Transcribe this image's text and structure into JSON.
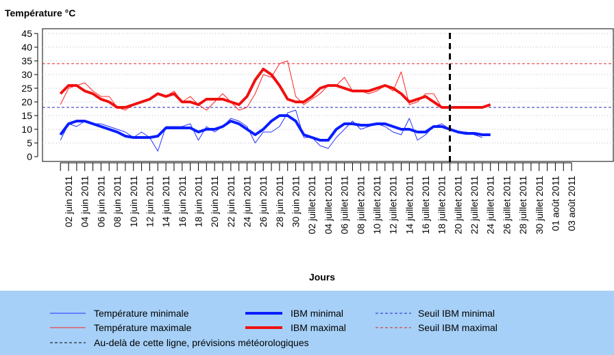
{
  "chart_data": {
    "type": "line",
    "title": "Température °C",
    "x_label": "Jours",
    "categories": [
      null,
      "02 juin 2011",
      null,
      "04 juin 2011",
      null,
      "06 juin 2011",
      null,
      "08 juin 2011",
      null,
      "10 juin 2011",
      null,
      "12 juin 2011",
      null,
      "14 juin 2011",
      null,
      "16 juin 2011",
      null,
      "18 juin 2011",
      null,
      "20 juin 2011",
      null,
      "22 juin 2011",
      null,
      "24 juin 2011",
      null,
      "26 juin 2011",
      null,
      "28 juin 2011",
      null,
      "30 juin 2011",
      null,
      "02 juillet 2011",
      null,
      "04 juillet 2011",
      null,
      "06 juillet 2011",
      null,
      "08 juillet 2011",
      null,
      "10 juillet 2011",
      null,
      "12 juillet 2011",
      null,
      "14 juillet 2011",
      null,
      "16 juillet 2011",
      null,
      "18 juillet 2011",
      null,
      "20 juillet 2011",
      null,
      "22 juillet 2011",
      null,
      "24 juillet 2011",
      null,
      "26 juillet 2011",
      null,
      "28 juillet 2011",
      null,
      "30 juillet 2011",
      null,
      "01 août 2011",
      null,
      "03 août 2011"
    ],
    "series": [
      {
        "name": "Température minimale",
        "color": "#1f2fff",
        "line_width": 1,
        "values": [
          6,
          12,
          11,
          13,
          12,
          12,
          11,
          10,
          9,
          7,
          9,
          7,
          2,
          11,
          11,
          11,
          12,
          6,
          11,
          9,
          11,
          14,
          13,
          11,
          5,
          9,
          9,
          11,
          16,
          17,
          7,
          7,
          4,
          3,
          7,
          10,
          13,
          10,
          11,
          12,
          11,
          9,
          8,
          14,
          6,
          8,
          11,
          12,
          10,
          9,
          9,
          8,
          7,
          null,
          null,
          null,
          null,
          null,
          null,
          null,
          null,
          null,
          null,
          null
        ]
      },
      {
        "name": "Température maximale",
        "color": "#ff2020",
        "line_width": 1,
        "values": [
          19,
          25,
          26,
          27,
          24,
          22,
          22,
          18,
          17,
          19,
          20,
          21,
          23,
          22,
          24,
          20,
          22,
          19,
          17,
          20,
          23,
          20,
          17,
          18,
          23,
          30,
          29,
          34,
          35,
          22,
          19,
          21,
          23,
          26,
          26,
          29,
          24,
          24,
          23,
          24,
          26,
          24,
          31,
          19,
          20,
          23,
          23,
          18,
          18,
          18,
          18,
          18,
          18,
          null,
          null,
          null,
          null,
          null,
          null,
          null,
          null,
          null,
          null,
          null
        ]
      },
      {
        "name": "IBM minimal",
        "color": "#0a1eff",
        "line_width": 4,
        "values": [
          8,
          12,
          13,
          13,
          12,
          11,
          10,
          9,
          7.5,
          7,
          7,
          7,
          7.5,
          10.5,
          10.5,
          10.5,
          10.5,
          9,
          10,
          10,
          11,
          13,
          12,
          10,
          8,
          10,
          13,
          15,
          15,
          13,
          8,
          7,
          6,
          6,
          10,
          12,
          12,
          11.5,
          11.5,
          12,
          12,
          11,
          10,
          10,
          9,
          9,
          11,
          11,
          10,
          9,
          8.5,
          8.5,
          8,
          8,
          null,
          null,
          null,
          null,
          null,
          null,
          null,
          null,
          null,
          null
        ]
      },
      {
        "name": "IBM maximal",
        "color": "#f01010",
        "line_width": 4,
        "values": [
          23,
          26,
          26,
          24,
          23,
          21,
          20,
          18,
          18,
          19,
          20,
          21,
          23,
          22,
          23,
          20,
          20,
          19,
          21,
          21,
          21,
          20,
          19,
          22,
          28,
          32,
          30,
          26,
          21,
          20,
          20,
          22,
          25,
          26,
          26,
          25,
          24,
          24,
          24,
          25,
          26,
          25,
          23,
          20,
          21,
          22,
          20,
          18,
          18,
          18,
          18,
          18,
          18,
          19,
          null,
          null,
          null,
          null,
          null,
          null,
          null,
          null,
          null,
          null
        ]
      }
    ],
    "thresholds": [
      {
        "name": "Seuil IBM minimal",
        "color": "#2020c0",
        "value": 18
      },
      {
        "name": "Seuil IBM maximal",
        "color": "#e02020",
        "value": 34
      }
    ],
    "forecast": {
      "name": "Au-delà de cette ligne, prévisions météorologiques",
      "index": 48,
      "color": "#000000"
    },
    "ylim": [
      0,
      45
    ],
    "yticks": [
      0,
      5,
      10,
      15,
      20,
      25,
      30,
      35,
      40,
      45
    ],
    "grid": true,
    "legend_background": "#a6d0f7"
  }
}
